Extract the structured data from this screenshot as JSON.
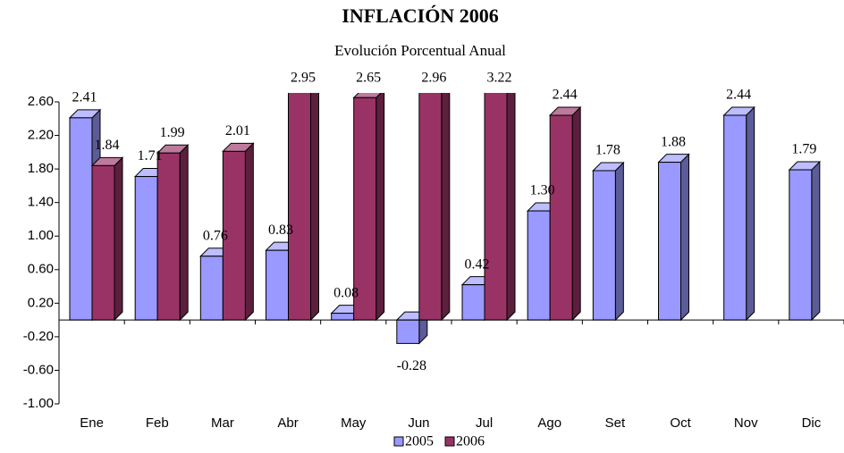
{
  "chart_data": {
    "type": "bar3d",
    "title": "INFLACIÓN 2006",
    "subtitle": "Evolución Porcentual Anual",
    "categories": [
      "Ene",
      "Feb",
      "Mar",
      "Abr",
      "May",
      "Jun",
      "Jul",
      "Ago",
      "Set",
      "Oct",
      "Nov",
      "Dic"
    ],
    "series": [
      {
        "name": "2005",
        "color": "#9999ff",
        "values": [
          2.41,
          1.71,
          0.76,
          0.83,
          0.08,
          -0.28,
          0.42,
          1.3,
          1.78,
          1.88,
          2.44,
          1.79
        ],
        "value_labels": [
          "2.41",
          "1.71",
          "0.76",
          "0.83",
          "0.08",
          "-0.28",
          "0.42",
          "1.30",
          "1.78",
          "1.88",
          "2.44",
          "1.79"
        ]
      },
      {
        "name": "2006",
        "color": "#993366",
        "values": [
          1.84,
          1.99,
          2.01,
          2.95,
          2.65,
          2.96,
          3.22,
          2.44,
          null,
          null,
          null,
          null
        ],
        "value_labels": [
          "1.84",
          "1.99",
          "2.01",
          "2.95",
          "2.65",
          "2.96",
          "3.22",
          "2.44",
          null,
          null,
          null,
          null
        ]
      }
    ],
    "ylim": [
      -1,
      2.6
    ],
    "yticks": [
      {
        "value": -1,
        "label": "-1.00"
      },
      {
        "value": -0.6,
        "label": "-0.60"
      },
      {
        "value": -0.2,
        "label": "-0.20"
      },
      {
        "value": 0.2,
        "label": "0.20"
      },
      {
        "value": 0.6,
        "label": "0.60"
      },
      {
        "value": 1,
        "label": "1.00"
      },
      {
        "value": 1.4,
        "label": "1.40"
      },
      {
        "value": 1.8,
        "label": "1.80"
      },
      {
        "value": 2.2,
        "label": "2.20"
      },
      {
        "value": 2.6,
        "label": "2.60"
      }
    ],
    "legend": "bottom"
  }
}
